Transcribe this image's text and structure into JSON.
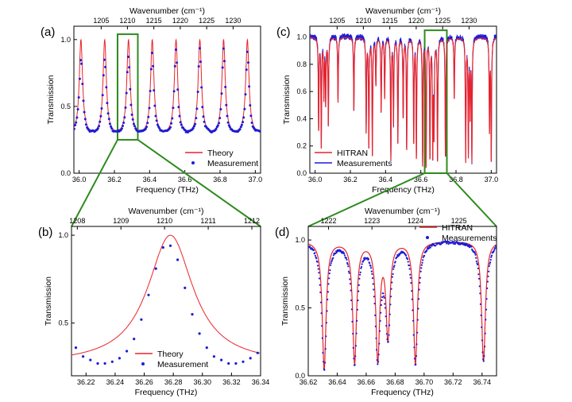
{
  "chart_data": [
    {
      "panel_label": "(a)",
      "type": "line",
      "xlabel": "Frequency (THz)",
      "ylabel": "Transmission",
      "top_xlabel": "Wavenumber (cm⁻¹)",
      "xlim": [
        35.97,
        37.03
      ],
      "ylim": [
        0.0,
        1.1
      ],
      "x_ticks": [
        "36.0",
        "36.2",
        "36.4",
        "36.6",
        "36.8",
        "37.0"
      ],
      "x_tick_values": [
        36.0,
        36.2,
        36.4,
        36.6,
        36.8,
        37.0
      ],
      "y_ticks": [
        "0.0",
        "0.5",
        "1.0"
      ],
      "y_tick_values": [
        0.0,
        0.5,
        1.0
      ],
      "top_ticks": [
        "1205",
        "1210",
        "1215",
        "1220",
        "1225",
        "1230"
      ],
      "top_tick_values": [
        36.125,
        36.274,
        36.424,
        36.574,
        36.724,
        36.874
      ],
      "series": [
        {
          "name": "Theory",
          "color": "#e8232b",
          "style": "line"
        },
        {
          "name": "Measurement",
          "color": "#1c1cd6",
          "style": "dots"
        }
      ],
      "peak_positions_thz": [
        36.01,
        36.145,
        36.28,
        36.415,
        36.55,
        36.685,
        36.82,
        36.955
      ],
      "highlight_box": [
        36.218,
        36.333,
        0.25,
        1.04
      ],
      "legend_position": "bottom-right"
    },
    {
      "panel_label": "(b)",
      "type": "line",
      "xlabel": "Frequency (THz)",
      "ylabel": "Transmission",
      "top_xlabel": "Wavenumber (cm⁻¹)",
      "xlim": [
        36.21,
        36.34
      ],
      "ylim": [
        0.2,
        1.05
      ],
      "x_ticks": [
        "36.22",
        "36.24",
        "36.26",
        "36.28",
        "36.30",
        "36.32",
        "36.34"
      ],
      "x_tick_values": [
        36.22,
        36.24,
        36.26,
        36.28,
        36.3,
        36.32,
        36.34
      ],
      "y_ticks": [
        "0.5",
        "1.0"
      ],
      "y_tick_values": [
        0.5,
        1.0
      ],
      "top_ticks": [
        "1208",
        "1209",
        "1210",
        "1211",
        "1212"
      ],
      "top_tick_values": [
        36.214,
        36.244,
        36.274,
        36.304,
        36.334
      ],
      "series": [
        {
          "name": "Theory",
          "color": "#e8232b",
          "style": "line"
        },
        {
          "name": "Measurement",
          "color": "#1c1cd6",
          "style": "dots",
          "x": [
            36.213,
            36.218,
            36.223,
            36.228,
            36.233,
            36.238,
            36.243,
            36.248,
            36.253,
            36.258,
            36.263,
            36.268,
            36.273,
            36.278,
            36.283,
            36.288,
            36.293,
            36.298,
            36.303,
            36.308,
            36.313,
            36.318,
            36.323,
            36.328,
            36.333,
            36.338
          ],
          "y": [
            0.36,
            0.31,
            0.29,
            0.27,
            0.27,
            0.28,
            0.3,
            0.34,
            0.41,
            0.52,
            0.66,
            0.81,
            0.93,
            0.94,
            0.86,
            0.7,
            0.55,
            0.44,
            0.36,
            0.31,
            0.29,
            0.27,
            0.27,
            0.28,
            0.3,
            0.33
          ]
        }
      ],
      "legend_position": "bottom-center"
    },
    {
      "panel_label": "(c)",
      "type": "line",
      "xlabel": "Frequency (THz)",
      "ylabel": "Transmission",
      "top_xlabel": "Wavenumber (cm⁻¹)",
      "xlim": [
        35.97,
        37.03
      ],
      "ylim": [
        0.0,
        1.08
      ],
      "x_ticks": [
        "36.0",
        "36.2",
        "36.4",
        "36.6",
        "36.8",
        "37.0"
      ],
      "x_tick_values": [
        36.0,
        36.2,
        36.4,
        36.6,
        36.8,
        37.0
      ],
      "y_ticks": [
        "0.0",
        "0.2",
        "0.4",
        "0.6",
        "0.8",
        "1.0"
      ],
      "y_tick_values": [
        0.0,
        0.2,
        0.4,
        0.6,
        0.8,
        1.0
      ],
      "top_ticks": [
        "1205",
        "1210",
        "1215",
        "1220",
        "1225",
        "1230"
      ],
      "top_tick_values": [
        36.125,
        36.274,
        36.424,
        36.574,
        36.724,
        36.874
      ],
      "series": [
        {
          "name": "HITRAN",
          "color": "#e8232b",
          "style": "line"
        },
        {
          "name": "Measurements",
          "color": "#1c1cd6",
          "style": "line"
        }
      ],
      "absorption_lines": [
        [
          36.02,
          0.3
        ],
        [
          36.035,
          0.18
        ],
        [
          36.05,
          0.55
        ],
        [
          36.06,
          0.5
        ],
        [
          36.075,
          0.35
        ],
        [
          36.13,
          0.52
        ],
        [
          36.22,
          0.45
        ],
        [
          36.29,
          0.3
        ],
        [
          36.305,
          0.18
        ],
        [
          36.325,
          0.12
        ],
        [
          36.345,
          0.65
        ],
        [
          36.375,
          0.45
        ],
        [
          36.395,
          0.55
        ],
        [
          36.43,
          0.1
        ],
        [
          36.445,
          0.35
        ],
        [
          36.47,
          0.22
        ],
        [
          36.5,
          0.4
        ],
        [
          36.52,
          0.15
        ],
        [
          36.56,
          0.2
        ],
        [
          36.575,
          0.1
        ],
        [
          36.61,
          0.05
        ],
        [
          36.63,
          0.04
        ],
        [
          36.652,
          0.08
        ],
        [
          36.668,
          0.08
        ],
        [
          36.675,
          0.25
        ],
        [
          36.695,
          0.08
        ],
        [
          36.74,
          0.1
        ],
        [
          36.79,
          0.55
        ],
        [
          36.855,
          0.07
        ],
        [
          36.87,
          0.12
        ],
        [
          36.88,
          0.4
        ],
        [
          36.89,
          0.08
        ],
        [
          36.99,
          0.3
        ],
        [
          37.0,
          0.06
        ]
      ],
      "highlight_box": [
        36.622,
        36.748,
        0.0,
        1.05
      ],
      "legend_position": "bottom-left"
    },
    {
      "panel_label": "(d)",
      "type": "line",
      "xlabel": "Frequency (THz)",
      "ylabel": "Transmission",
      "top_xlabel": "Wavenumber (cm⁻¹)",
      "xlim": [
        36.62,
        36.75
      ],
      "ylim": [
        0.0,
        1.1
      ],
      "x_ticks": [
        "36.62",
        "36.64",
        "36.66",
        "36.68",
        "36.70",
        "36.72",
        "36.74"
      ],
      "x_tick_values": [
        36.62,
        36.64,
        36.66,
        36.68,
        36.7,
        36.72,
        36.74
      ],
      "y_ticks": [
        "0.0",
        "0.5",
        "1.0"
      ],
      "y_tick_values": [
        0.0,
        0.5,
        1.0
      ],
      "top_ticks": [
        "1222",
        "1223",
        "1224",
        "1225"
      ],
      "top_tick_values": [
        36.634,
        36.664,
        36.694,
        36.724
      ],
      "series": [
        {
          "name": "HITRAN",
          "color": "#e8232b",
          "style": "line"
        },
        {
          "name": "Measurements",
          "color": "#1c1cd6",
          "style": "dots"
        }
      ],
      "absorption_lines": [
        [
          36.631,
          0.04
        ],
        [
          36.652,
          0.08
        ],
        [
          36.668,
          0.09
        ],
        [
          36.675,
          0.26
        ],
        [
          36.694,
          0.08
        ],
        [
          36.741,
          0.1
        ]
      ],
      "legend_position": "top-right"
    }
  ],
  "annotation": {
    "connector_color": "#2e8b1f"
  }
}
